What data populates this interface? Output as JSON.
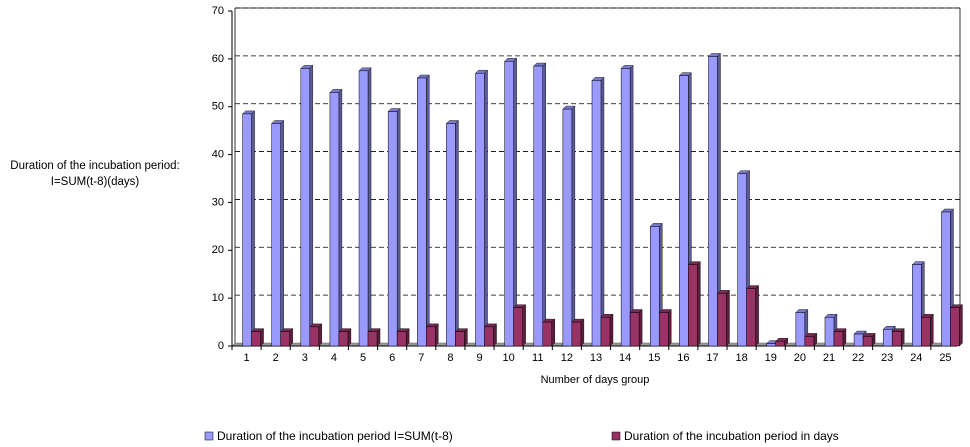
{
  "chart_data": {
    "type": "bar3d",
    "y_label": "Duration of the incubation period: I=SUM(t-8)(days)",
    "x_label": "Number of days group",
    "categories": [
      "1",
      "2",
      "3",
      "4",
      "5",
      "6",
      "7",
      "8",
      "9",
      "10",
      "11",
      "12",
      "13",
      "14",
      "15",
      "16",
      "17",
      "18",
      "19",
      "20",
      "21",
      "22",
      "23",
      "24",
      "25"
    ],
    "series": [
      {
        "name": "Duration of the incubation period I=SUM(t-8)",
        "color": "#9999ff",
        "values": [
          48.5,
          46.5,
          58,
          53,
          57.5,
          49,
          56,
          46.5,
          57,
          59.5,
          58.5,
          49.5,
          55.5,
          58,
          25,
          56.5,
          60.5,
          36,
          0.5,
          7,
          6,
          2.5,
          3.5,
          17,
          28
        ]
      },
      {
        "name": "Duration of the incubation period in days",
        "color": "#993366",
        "values": [
          3,
          3,
          4,
          3,
          3,
          3,
          4,
          3,
          4,
          8,
          5,
          5,
          6,
          7,
          7,
          17,
          11,
          12,
          1,
          2,
          3,
          2,
          3,
          6,
          8
        ]
      }
    ],
    "ylim": [
      0,
      70
    ],
    "yticks": [
      0,
      10,
      20,
      30,
      40,
      50,
      60,
      70
    ],
    "grid": true
  }
}
